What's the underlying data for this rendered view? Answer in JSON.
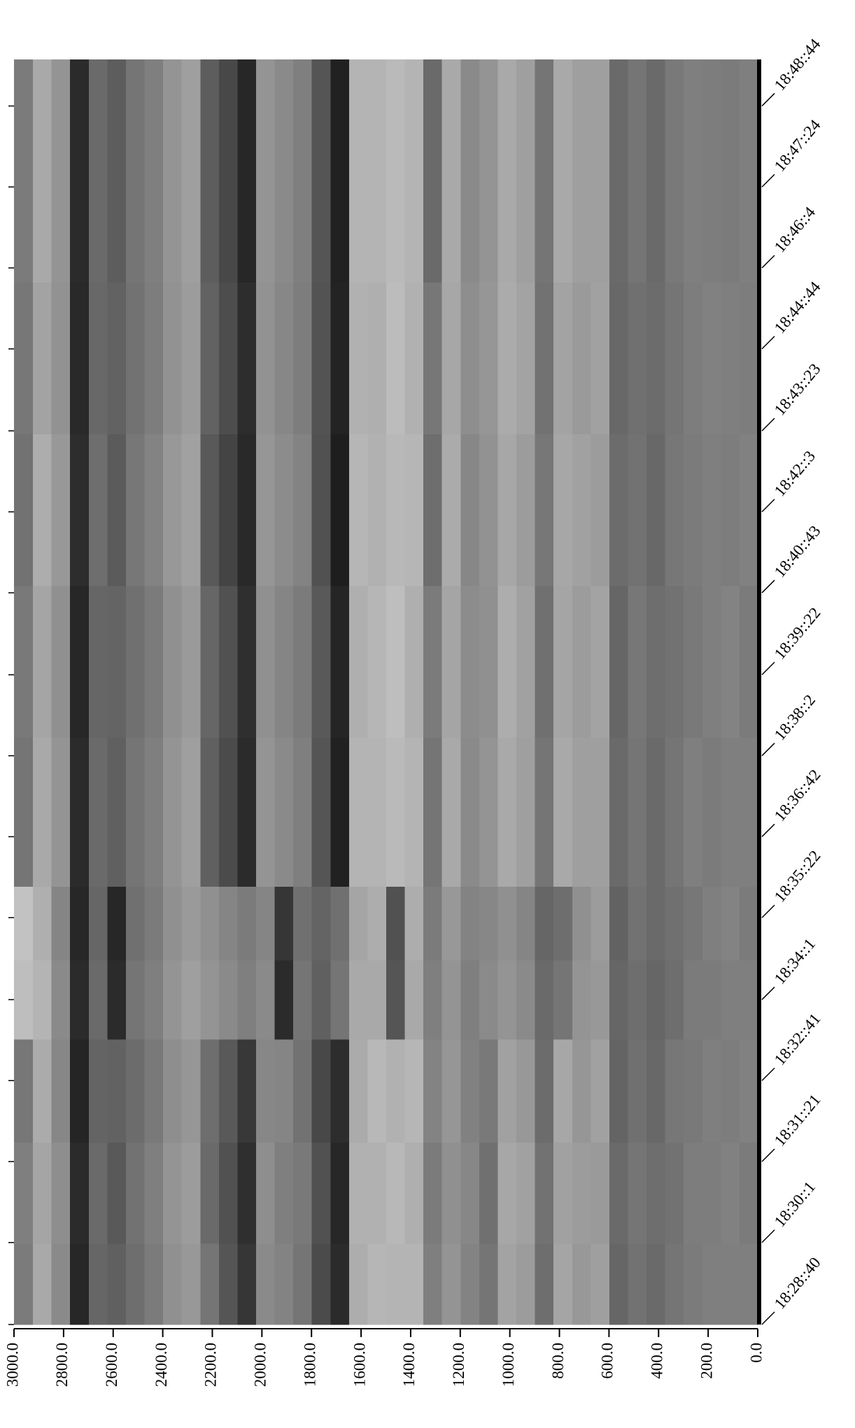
{
  "chart_data": {
    "type": "heatmap",
    "xlim": [
      3000,
      0
    ],
    "xticks": [
      {
        "value": 3000,
        "label": "3000.0"
      },
      {
        "value": 2800,
        "label": "2800.0"
      },
      {
        "value": 2600,
        "label": "2600.0"
      },
      {
        "value": 2400,
        "label": "2400.0"
      },
      {
        "value": 2200,
        "label": "2200.0"
      },
      {
        "value": 2000,
        "label": "2000.0"
      },
      {
        "value": 1800,
        "label": "1800.0"
      },
      {
        "value": 1600,
        "label": "1600.0"
      },
      {
        "value": 1400,
        "label": "1400.0"
      },
      {
        "value": 1200,
        "label": "1200.0"
      },
      {
        "value": 1000,
        "label": "1000.0"
      },
      {
        "value": 800,
        "label": "800.0"
      },
      {
        "value": 600,
        "label": "600.0"
      },
      {
        "value": 400,
        "label": "400.0"
      },
      {
        "value": 200,
        "label": "200.0"
      },
      {
        "value": 0,
        "label": "0.0"
      }
    ],
    "ylim": [
      66520,
      67770
    ],
    "yticks": [
      {
        "value": 66520,
        "label": "18:28::40"
      },
      {
        "value": 66601,
        "label": "18:30::1"
      },
      {
        "value": 66681,
        "label": "18:31::21"
      },
      {
        "value": 66761,
        "label": "18:32::41"
      },
      {
        "value": 66841,
        "label": "18:34::1"
      },
      {
        "value": 66922,
        "label": "18:35::22"
      },
      {
        "value": 67002,
        "label": "18:36::42"
      },
      {
        "value": 67082,
        "label": "18:38::2"
      },
      {
        "value": 67162,
        "label": "18:39::22"
      },
      {
        "value": 67243,
        "label": "18:40::43"
      },
      {
        "value": 67323,
        "label": "18:42::3"
      },
      {
        "value": 67403,
        "label": "18:43::23"
      },
      {
        "value": 67484,
        "label": "18:44::44"
      },
      {
        "value": 67564,
        "label": "18:46::4"
      },
      {
        "value": 67644,
        "label": "18:47::24"
      },
      {
        "value": 67724,
        "label": "18:48::44"
      }
    ],
    "x_bins": [
      0,
      75,
      150,
      225,
      300,
      375,
      450,
      525,
      600,
      675,
      750,
      825,
      900,
      975,
      1050,
      1125,
      1200,
      1275,
      1350,
      1425,
      1500,
      1575,
      1650,
      1725,
      1800,
      1875,
      1950,
      2025,
      2100,
      2175,
      2250,
      2325,
      2400,
      2475,
      2550,
      2625,
      2700,
      2775,
      2850,
      2925,
      3000
    ],
    "y_bins": [
      66520,
      66600,
      66700,
      66802,
      66880,
      66953,
      67100,
      67250,
      67400,
      67550,
      67770
    ],
    "values": [
      [
        50,
        50,
        50,
        52,
        55,
        60,
        56,
        62,
        35,
        38,
        32,
        58,
        36,
        33,
        55,
        48,
        40,
        50,
        25,
        25,
        24,
        28,
        90,
        75,
        55,
        48,
        45,
        85,
        70,
        55,
        38,
        42,
        52,
        58,
        65,
        62,
        92,
        45,
        30,
        52
      ],
      [
        52,
        49,
        51,
        51,
        56,
        58,
        55,
        60,
        37,
        36,
        34,
        56,
        34,
        31,
        57,
        46,
        42,
        52,
        27,
        23,
        26,
        26,
        92,
        72,
        53,
        50,
        43,
        88,
        72,
        60,
        36,
        40,
        50,
        56,
        68,
        60,
        90,
        43,
        32,
        50
      ],
      [
        49,
        51,
        50,
        53,
        54,
        61,
        57,
        63,
        34,
        39,
        31,
        59,
        38,
        34,
        53,
        49,
        39,
        48,
        24,
        26,
        23,
        29,
        89,
        76,
        56,
        47,
        46,
        84,
        68,
        58,
        39,
        43,
        53,
        59,
        64,
        63,
        93,
        46,
        29,
        54
      ],
      [
        50,
        50,
        52,
        52,
        58,
        62,
        58,
        62,
        38,
        40,
        55,
        60,
        45,
        40,
        45,
        50,
        40,
        50,
        30,
        70,
        30,
        30,
        55,
        65,
        55,
        90,
        45,
        50,
        45,
        40,
        35,
        40,
        50,
        55,
        90,
        60,
        90,
        45,
        25,
        20
      ],
      [
        52,
        48,
        50,
        54,
        57,
        60,
        56,
        64,
        36,
        42,
        58,
        62,
        47,
        42,
        46,
        48,
        38,
        52,
        28,
        72,
        28,
        32,
        57,
        63,
        57,
        85,
        47,
        52,
        47,
        42,
        37,
        42,
        52,
        57,
        92,
        62,
        92,
        47,
        27,
        18
      ],
      [
        50,
        50,
        52,
        50,
        55,
        60,
        55,
        60,
        35,
        35,
        30,
        55,
        35,
        30,
        40,
        45,
        30,
        55,
        25,
        22,
        25,
        25,
        95,
        70,
        50,
        45,
        40,
        90,
        75,
        65,
        35,
        40,
        50,
        55,
        65,
        60,
        90,
        40,
        30,
        55
      ],
      [
        52,
        48,
        50,
        53,
        56,
        58,
        54,
        62,
        33,
        36,
        32,
        57,
        34,
        28,
        42,
        44,
        32,
        52,
        27,
        20,
        24,
        27,
        93,
        68,
        52,
        47,
        42,
        88,
        72,
        62,
        37,
        42,
        52,
        57,
        63,
        62,
        92,
        42,
        32,
        53
      ],
      [
        49,
        51,
        50,
        52,
        54,
        61,
        56,
        59,
        36,
        34,
        31,
        54,
        36,
        31,
        41,
        46,
        29,
        58,
        24,
        23,
        26,
        24,
        96,
        72,
        48,
        44,
        39,
        91,
        78,
        68,
        34,
        38,
        48,
        54,
        67,
        58,
        89,
        38,
        28,
        56
      ],
      [
        51,
        50,
        49,
        51,
        55,
        59,
        57,
        61,
        34,
        37,
        33,
        56,
        33,
        29,
        39,
        43,
        31,
        54,
        26,
        21,
        27,
        26,
        94,
        71,
        51,
        46,
        41,
        89,
        74,
        64,
        36,
        41,
        51,
        56,
        64,
        61,
        91,
        41,
        33,
        54
      ],
      [
        50,
        52,
        51,
        50,
        53,
        60,
        55,
        60,
        35,
        35,
        30,
        55,
        35,
        30,
        40,
        45,
        30,
        60,
        25,
        22,
        25,
        25,
        95,
        70,
        50,
        45,
        40,
        92,
        76,
        66,
        35,
        40,
        50,
        55,
        66,
        60,
        90,
        40,
        30,
        52
      ]
    ]
  }
}
